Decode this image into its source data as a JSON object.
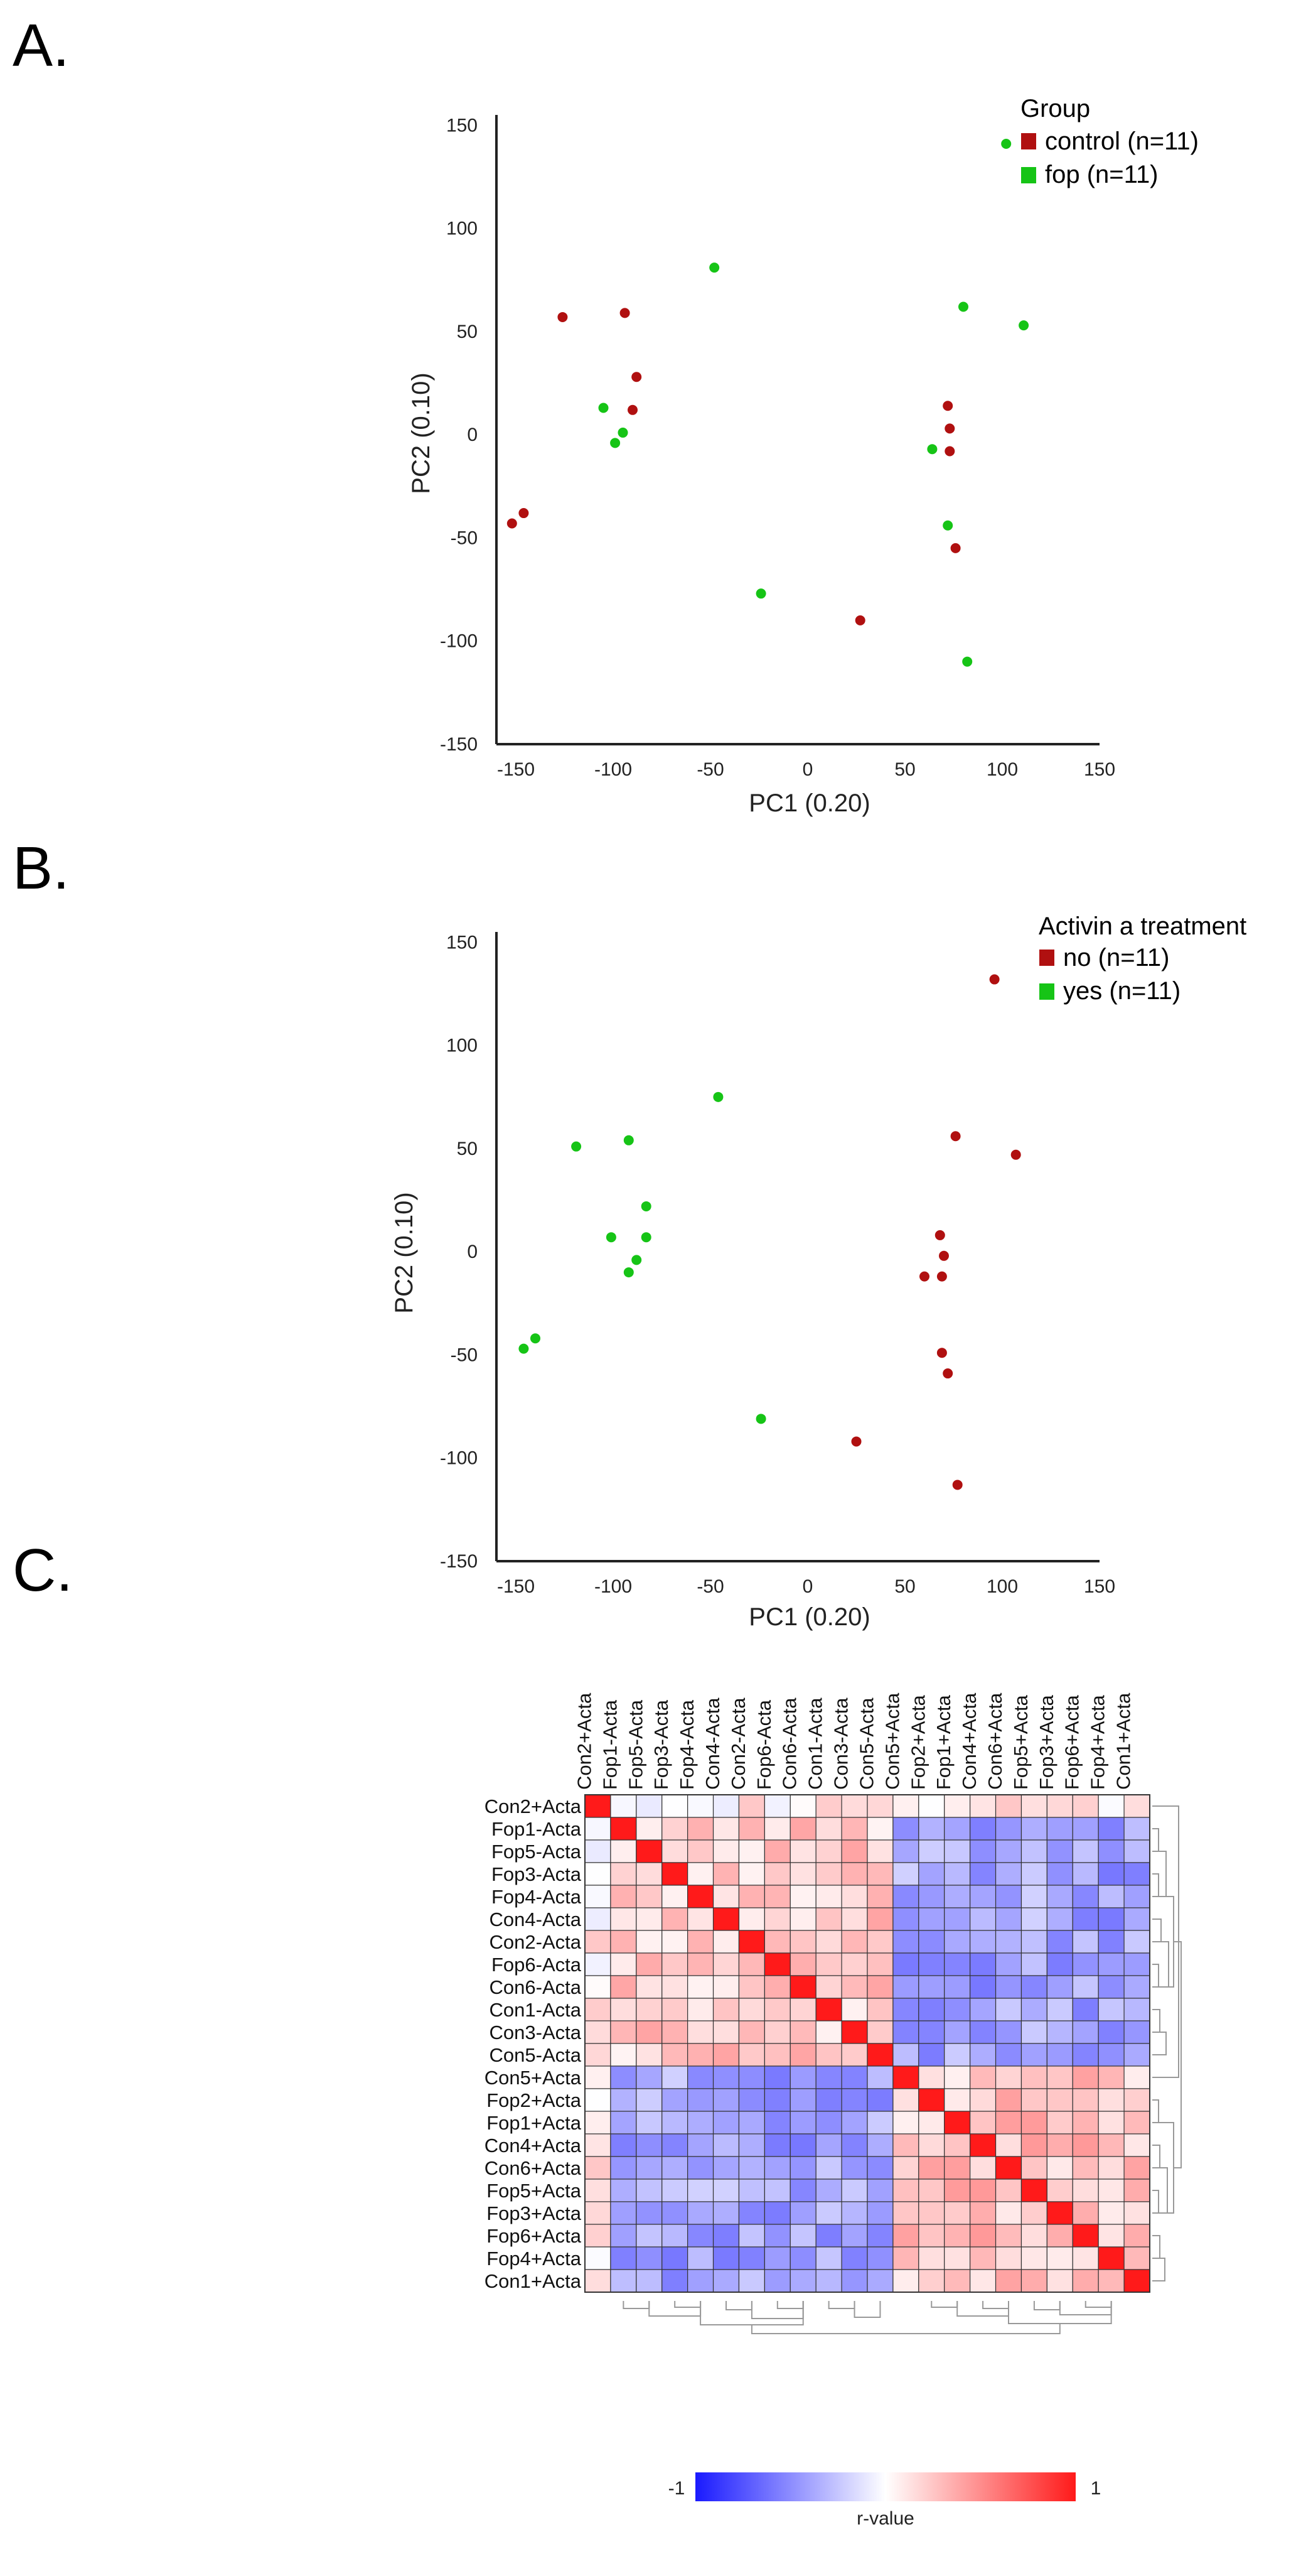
{
  "panels": {
    "a": {
      "label": "A."
    },
    "b": {
      "label": "B."
    },
    "c": {
      "label": "C."
    }
  },
  "colors": {
    "red": "#b01010",
    "green": "#16c416",
    "heat_low": "#1a1aff",
    "heat_mid": "#ffffff",
    "heat_high": "#ff1a1a"
  },
  "chart_data": [
    {
      "type": "scatter",
      "id": "A",
      "title": "",
      "xlabel": "PC1 (0.20)",
      "ylabel": "PC2 (0.10)",
      "xlim": [
        -160,
        150
      ],
      "ylim": [
        -150,
        155
      ],
      "xticks": [
        "-150",
        "-100",
        "-50",
        "0",
        "50",
        "100",
        "150"
      ],
      "yticks": [
        "-150",
        "-100",
        "-50",
        "0",
        "50",
        "100",
        "150"
      ],
      "legend": {
        "title": "Group",
        "position": "top-right",
        "entries": [
          {
            "name": "control",
            "n": "(n=11)",
            "color_key": "red"
          },
          {
            "name": "fop",
            "n": "(n=11)",
            "color_key": "green"
          }
        ]
      },
      "series": [
        {
          "name": "control",
          "color_key": "red",
          "points": [
            [
              -126,
              57
            ],
            [
              -94,
              59
            ],
            [
              -88,
              28
            ],
            [
              -90,
              12
            ],
            [
              -152,
              -43
            ],
            [
              -146,
              -38
            ],
            [
              27,
              -90
            ],
            [
              72,
              14
            ],
            [
              73,
              3
            ],
            [
              73,
              -8
            ],
            [
              76,
              -55
            ]
          ]
        },
        {
          "name": "fop",
          "color_key": "green",
          "points": [
            [
              -105,
              13
            ],
            [
              -95,
              1
            ],
            [
              -99,
              -4
            ],
            [
              -48,
              81
            ],
            [
              -24,
              -77
            ],
            [
              102,
              141
            ],
            [
              80,
              62
            ],
            [
              111,
              53
            ],
            [
              64,
              -7
            ],
            [
              72,
              -44
            ],
            [
              82,
              -110
            ]
          ]
        }
      ]
    },
    {
      "type": "scatter",
      "id": "B",
      "title": "",
      "xlabel": "PC1 (0.20)",
      "ylabel": "PC2 (0.10)",
      "xlim": [
        -160,
        150
      ],
      "ylim": [
        -150,
        155
      ],
      "xticks": [
        "-150",
        "-100",
        "-50",
        "0",
        "50",
        "100",
        "150"
      ],
      "yticks": [
        "-150",
        "-100",
        "-50",
        "0",
        "50",
        "100",
        "150"
      ],
      "legend": {
        "title": "Activin a treatment",
        "position": "top-right",
        "entries": [
          {
            "name": "no",
            "n": "(n=11)",
            "color_key": "red"
          },
          {
            "name": "yes",
            "n": "(n=11)",
            "color_key": "green"
          }
        ]
      },
      "series": [
        {
          "name": "no",
          "color_key": "red",
          "points": [
            [
              96,
              132
            ],
            [
              76,
              56
            ],
            [
              107,
              47
            ],
            [
              68,
              8
            ],
            [
              70,
              -2
            ],
            [
              69,
              -12
            ],
            [
              60,
              -12
            ],
            [
              69,
              -49
            ],
            [
              72,
              -59
            ],
            [
              25,
              -92
            ],
            [
              77,
              -113
            ]
          ]
        },
        {
          "name": "yes",
          "color_key": "green",
          "points": [
            [
              -119,
              51
            ],
            [
              -92,
              54
            ],
            [
              -46,
              75
            ],
            [
              -83,
              22
            ],
            [
              -83,
              7
            ],
            [
              -101,
              7
            ],
            [
              -88,
              -4
            ],
            [
              -92,
              -10
            ],
            [
              -140,
              -42
            ],
            [
              -146,
              -47
            ],
            [
              -24,
              -81
            ]
          ]
        }
      ]
    },
    {
      "type": "heatmap",
      "id": "C",
      "row_labels": [
        "Con2+Acta",
        "Fop1-Acta",
        "Fop5-Acta",
        "Fop3-Acta",
        "Fop4-Acta",
        "Con4-Acta",
        "Con2-Acta",
        "Fop6-Acta",
        "Con6-Acta",
        "Con1-Acta",
        "Con3-Acta",
        "Con5-Acta",
        "Con5+Acta",
        "Fop2+Acta",
        "Fop1+Acta",
        "Con4+Acta",
        "Con6+Acta",
        "Fop5+Acta",
        "Fop3+Acta",
        "Fop6+Acta",
        "Fop4+Acta",
        "Con1+Acta"
      ],
      "col_labels": [
        "Con2+Acta",
        "Fop1-Acta",
        "Fop5-Acta",
        "Fop3-Acta",
        "Fop4-Acta",
        "Con4-Acta",
        "Con2-Acta",
        "Fop6-Acta",
        "Con6-Acta",
        "Con1-Acta",
        "Con3-Acta",
        "Con5-Acta",
        "Con5+Acta",
        "Fop2+Acta",
        "Fop1+Acta",
        "Con4+Acta",
        "Con6+Acta",
        "Fop5+Acta",
        "Fop3+Acta",
        "Fop6+Acta",
        "Fop4+Acta",
        "Con1+Acta"
      ],
      "colorbar": {
        "min_label": "-1",
        "max_label": "1",
        "label": "r-value",
        "range": [
          -1,
          1
        ]
      },
      "dendrogram": true
    }
  ]
}
